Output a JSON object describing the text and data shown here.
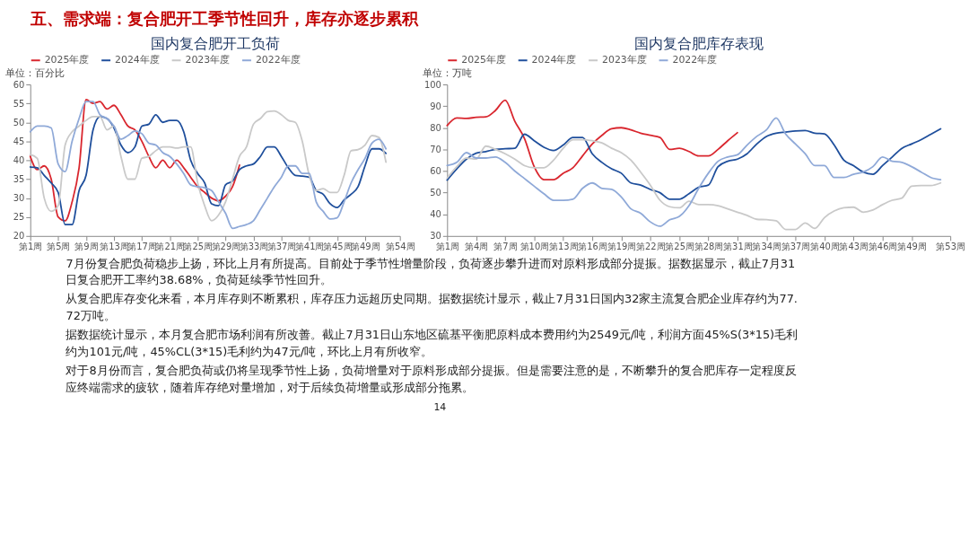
{
  "chart_data": [
    {
      "type": "line",
      "title": "国内复合肥开工负荷",
      "ylabel": "单位：百分比",
      "legend": "top",
      "grid": false,
      "categories": [
        "第1周",
        null,
        null,
        null,
        "第5周",
        null,
        null,
        null,
        "第9周",
        null,
        null,
        null,
        "第13周",
        null,
        null,
        null,
        "第17周",
        null,
        null,
        null,
        "第21周",
        null,
        null,
        null,
        "第25周",
        null,
        null,
        null,
        "第29周",
        null,
        null,
        null,
        "第33周",
        null,
        null,
        null,
        "第37周",
        null,
        null,
        null,
        "第41周",
        null,
        null,
        null,
        "第45周",
        null,
        null,
        null,
        "第49周",
        null,
        null,
        null,
        null,
        "第54周"
      ],
      "ylim": [
        20,
        60
      ],
      "yticks": [
        20,
        25,
        30,
        35,
        40,
        45,
        50,
        55,
        60
      ],
      "series": [
        {
          "name": "2025年度",
          "color": "#d9262e",
          "values": [
            41,
            37.5,
            38.5,
            35,
            25,
            24,
            29,
            38,
            56,
            55,
            55.5,
            53.5,
            54.5,
            52,
            49,
            48,
            45,
            41,
            38,
            40,
            38,
            40,
            38,
            35.5,
            33,
            31.5,
            30,
            29.3,
            30.5,
            33,
            38.7,
            null,
            null,
            null,
            null,
            null,
            null,
            null,
            null,
            null,
            null,
            null,
            null,
            null,
            null,
            null,
            null,
            null,
            null,
            null,
            null,
            null,
            null,
            null
          ]
        },
        {
          "name": "2024年度",
          "color": "#1f4f9c",
          "values": [
            38.2,
            38,
            36,
            34,
            31.5,
            23,
            23,
            32,
            36,
            48,
            51.5,
            51,
            48.5,
            44,
            42,
            43.5,
            49,
            49.5,
            52,
            50,
            50.5,
            50.5,
            47.5,
            40,
            36.5,
            34,
            28.5,
            28,
            33.5,
            34.5,
            37.5,
            38.5,
            39,
            41,
            43.5,
            43.5,
            41,
            38,
            36,
            35.8,
            35.5,
            32,
            31,
            28.5,
            27.5,
            29.5,
            31,
            33,
            38.5,
            43,
            43,
            41.8,
            null,
            null
          ]
        },
        {
          "name": "2023年度",
          "color": "#c9c9c9",
          "values": [
            41.5,
            40.5,
            30,
            26.5,
            28,
            44,
            47.5,
            49,
            50.5,
            51.5,
            51.5,
            48,
            49,
            41,
            35,
            35,
            40.5,
            41,
            42.5,
            43.5,
            43.5,
            43.2,
            43.5,
            43.5,
            34,
            28,
            24,
            25.5,
            29,
            35,
            41,
            43.5,
            49.5,
            51,
            52.8,
            53,
            52,
            50.5,
            50,
            45,
            36,
            32,
            32.5,
            31.5,
            31.5,
            36,
            42.5,
            42.8,
            44,
            46.5,
            46,
            39.5,
            null,
            null
          ]
        },
        {
          "name": "2022年度",
          "color": "#8fa9d8",
          "values": [
            47.5,
            49,
            49,
            48.5,
            39,
            37,
            45,
            51,
            55.5,
            55.5,
            52,
            51,
            49,
            45.5,
            46.5,
            47.7,
            47,
            44.5,
            44,
            42,
            41,
            39,
            36.5,
            33.5,
            33,
            32.7,
            32,
            29,
            26,
            22,
            22.5,
            23,
            24,
            27,
            30,
            33,
            35.5,
            38.5,
            38.5,
            36.5,
            36.5,
            29,
            26.5,
            24.5,
            24.8,
            29,
            34,
            37.5,
            40.5,
            44.5,
            45.5,
            43,
            null,
            null
          ]
        }
      ]
    },
    {
      "type": "line",
      "title": "国内复合肥库存表现",
      "ylabel": "单位：万吨",
      "legend": "top",
      "grid": false,
      "categories": [
        "第1周",
        null,
        null,
        "第4周",
        null,
        null,
        "第7周",
        null,
        null,
        "第10周",
        null,
        null,
        "第13周",
        null,
        null,
        "第16周",
        null,
        null,
        "第19周",
        null,
        null,
        "第22周",
        null,
        null,
        "第25周",
        null,
        null,
        "第28周",
        null,
        null,
        "第31周",
        null,
        null,
        "第34周",
        null,
        null,
        "第37周",
        null,
        null,
        "第40周",
        null,
        null,
        "第43周",
        null,
        null,
        "第46周",
        null,
        null,
        "第49周",
        null,
        null,
        null,
        "第53周"
      ],
      "ylim": [
        30,
        100
      ],
      "yticks": [
        30,
        40,
        50,
        60,
        70,
        80,
        90,
        100
      ],
      "series": [
        {
          "name": "2025年度",
          "color": "#d9262e",
          "values": [
            81,
            84.5,
            84.3,
            84.8,
            85,
            88,
            92.7,
            83,
            75,
            62,
            56,
            56,
            59,
            61.5,
            67,
            72.5,
            76.5,
            79.5,
            80,
            79,
            77.5,
            76.5,
            75.5,
            70,
            70.5,
            69,
            67,
            67,
            70,
            74,
            77.7,
            null,
            null,
            null,
            null,
            null,
            null,
            null,
            null,
            null,
            null,
            null,
            null,
            null,
            null,
            null,
            null,
            null,
            null,
            null,
            null,
            null,
            null
          ]
        },
        {
          "name": "2024年度",
          "color": "#1f4f9c",
          "values": [
            55.8,
            61,
            65.5,
            68.2,
            69,
            70,
            70.3,
            70.5,
            77,
            74,
            71,
            69.5,
            72,
            75.5,
            75.5,
            68,
            64,
            61,
            59,
            54.5,
            53.5,
            51.5,
            50,
            47,
            47,
            49.5,
            52.5,
            53.5,
            62,
            64.5,
            65.5,
            68,
            72.5,
            76,
            77.5,
            78,
            78.5,
            78.7,
            77.5,
            77.2,
            72,
            65,
            62.5,
            59.5,
            58.5,
            62.5,
            66.5,
            70.5,
            72.5,
            74.5,
            77,
            79.5,
            null
          ]
        },
        {
          "name": "2023年度",
          "color": "#c9c9c9",
          "values": [
            56.7,
            62,
            66,
            65.5,
            71.5,
            70,
            68,
            65.5,
            62.5,
            61.5,
            61.5,
            65,
            70.5,
            74.5,
            74.5,
            74,
            73,
            70.5,
            68.5,
            65,
            59.5,
            53.5,
            46.5,
            43.5,
            43,
            46,
            44.5,
            44.5,
            44,
            42.5,
            41,
            39.5,
            37.7,
            37.5,
            37,
            33,
            33,
            36,
            33.5,
            38.5,
            41.5,
            43,
            43.3,
            41,
            42,
            44.5,
            46.5,
            47.5,
            53,
            53.3,
            53.3,
            54.5,
            null
          ]
        },
        {
          "name": "2022年度",
          "color": "#8fa9d8",
          "values": [
            62.5,
            64,
            68.5,
            66,
            66,
            66.5,
            64,
            60,
            56.5,
            53,
            49.5,
            46.5,
            46.5,
            47,
            52,
            54.5,
            52,
            51.5,
            48,
            42.5,
            40.5,
            36.5,
            34.5,
            37.5,
            39,
            44,
            52,
            59,
            64.5,
            66.5,
            67.5,
            72,
            76,
            79,
            84.5,
            77,
            72.5,
            68,
            62.5,
            62.5,
            57,
            57,
            58.5,
            59.5,
            62,
            66.5,
            64.5,
            64,
            62,
            59.5,
            57,
            56,
            null
          ]
        }
      ]
    },
    {
      "type": "other",
      "title": "五、需求端：复合肥开工季节性回升，库存亦逐步累积",
      "annotations": [
        "7月份复合肥负荷稳步上扬，环比上月有所提高。目前处于季节性增量阶段，负荷逐步攀升进而对原料形成部分提振。据数据显示，截止7月31日复合肥开工率约38.68%，负荷延续季节性回升。",
        "从复合肥库存变化来看，本月库存则不断累积，库存压力远超历史同期。据数据统计显示，截止7月31日国内32家主流复合肥企业库存约为77.72万吨。",
        "据数据统计显示，本月复合肥市场利润有所改善。截止7月31日山东地区硫基平衡肥原料成本费用约为2549元/吨，利润方面45%S(3*15)毛利约为101元/吨，45%CL(3*15)毛利约为47元/吨，环比上月有所收窄。",
        "对于8月份而言，复合肥负荷或仍将呈现季节性上扬，负荷增量对于原料形成部分提振。但是需要注意的是，不断攀升的复合肥库存一定程度反应终端需求的疲软，随着库存绝对量增加，对于后续负荷增量或形成部分拖累。",
        "14"
      ]
    }
  ]
}
